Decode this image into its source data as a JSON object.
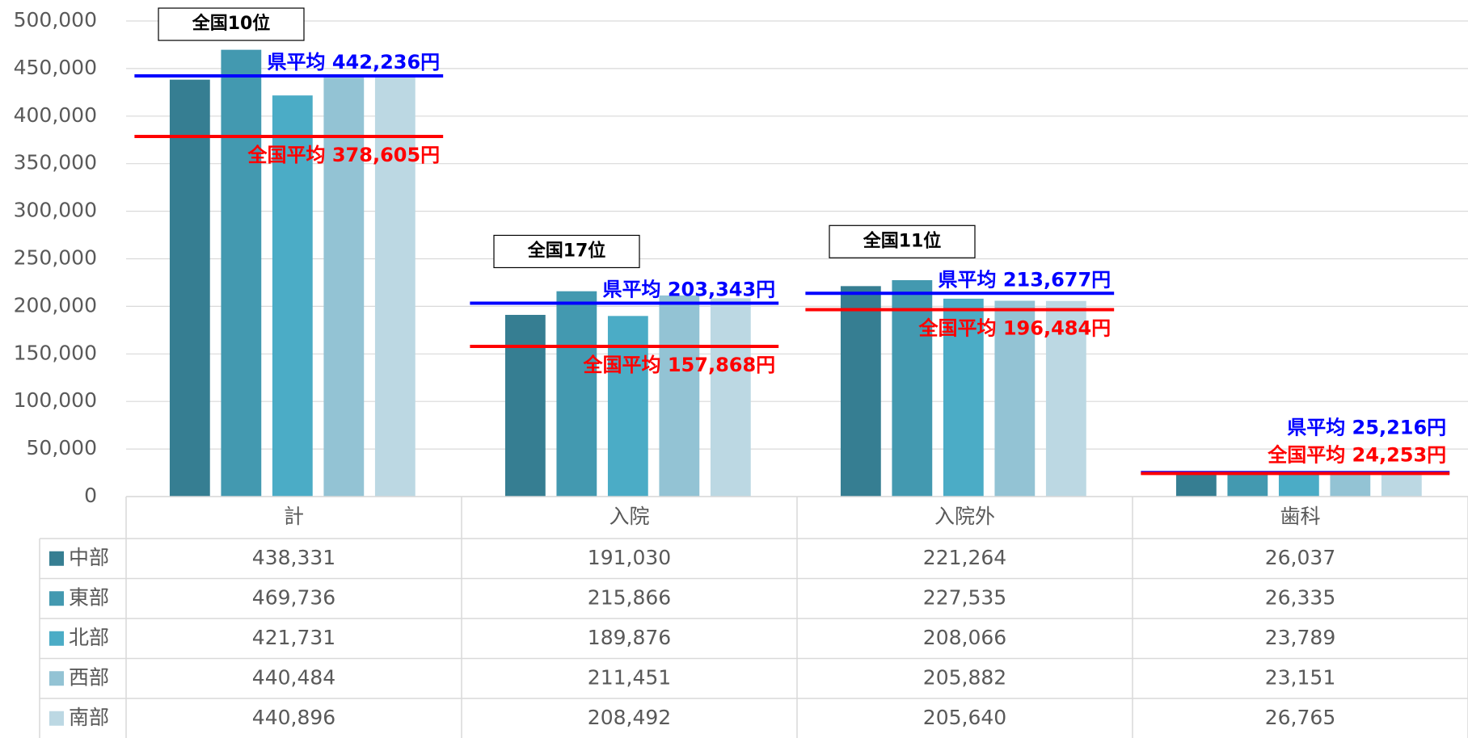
{
  "chart_data": {
    "type": "bar",
    "categories": [
      "計",
      "入院",
      "入院外",
      "歯科"
    ],
    "series": [
      {
        "name": "中部",
        "color": "#367e92",
        "values": [
          438331,
          191030,
          221264,
          26037
        ],
        "value_labels": [
          "438,331",
          "191,030",
          "221,264",
          "26,037"
        ]
      },
      {
        "name": "東部",
        "color": "#4399b0",
        "values": [
          469736,
          215866,
          227535,
          26335
        ],
        "value_labels": [
          "469,736",
          "215,866",
          "227,535",
          "26,335"
        ]
      },
      {
        "name": "北部",
        "color": "#4bacc6",
        "values": [
          421731,
          189876,
          208066,
          23789
        ],
        "value_labels": [
          "421,731",
          "189,876",
          "208,066",
          "23,789"
        ]
      },
      {
        "name": "西部",
        "color": "#93c3d4",
        "values": [
          440484,
          211451,
          205882,
          23151
        ],
        "value_labels": [
          "440,484",
          "211,451",
          "205,882",
          "23,151"
        ]
      },
      {
        "name": "南部",
        "color": "#bcd8e3",
        "values": [
          440896,
          208492,
          205640,
          26765
        ],
        "value_labels": [
          "440,896",
          "208,492",
          "205,640",
          "26,765"
        ]
      }
    ],
    "reference_lines": [
      {
        "color": "#0000ff",
        "values": [
          442236,
          203343,
          213677,
          25216
        ],
        "value_labels": [
          "県平均 442,236円",
          "県平均 203,343円",
          "県平均 213,677円",
          "県平均 25,216円"
        ]
      },
      {
        "color": "#ff0000",
        "values": [
          378605,
          157868,
          196484,
          24253
        ],
        "value_labels": [
          "全国平均 378,605円",
          "全国平均 157,868円",
          "全国平均 196,484円",
          "全国平均 24,253円"
        ]
      }
    ],
    "rank_labels": [
      "全国10位",
      "全国17位",
      "全国11位",
      null
    ],
    "ylim": [
      0,
      500000
    ],
    "yticks": [
      0,
      {
        "value": 50000,
        "label": "50,000"
      },
      {
        "value": 100000,
        "label": "100,000"
      },
      {
        "value": 150000,
        "label": "150,000"
      },
      {
        "value": 200000,
        "label": "200,000"
      },
      {
        "value": 250000,
        "label": "250,000"
      },
      {
        "value": 300000,
        "label": "300,000"
      },
      {
        "value": 350000,
        "label": "350,000"
      },
      {
        "value": 400000,
        "label": "400,000"
      },
      {
        "value": 450000,
        "label": "450,000"
      },
      {
        "value": 500000,
        "label": "500,000"
      }
    ],
    "grid": true
  }
}
